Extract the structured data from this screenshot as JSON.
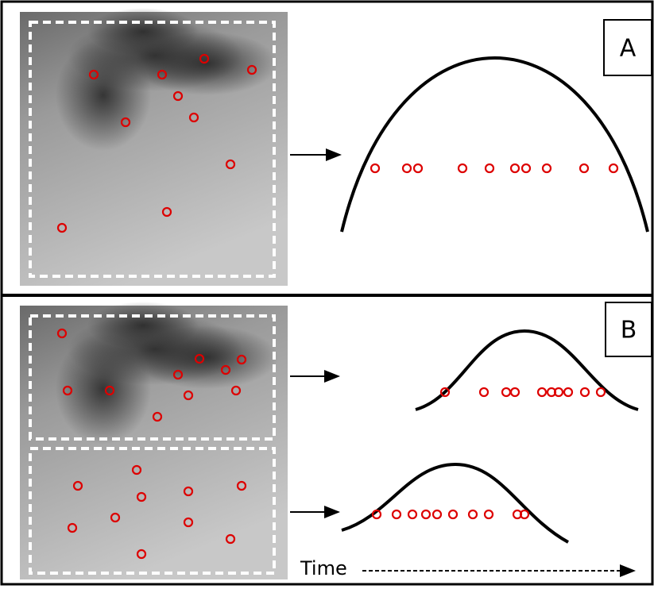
{
  "panels": [
    {
      "label": "A"
    },
    {
      "label": "B"
    }
  ],
  "time_axis": {
    "label": "Time"
  }
}
